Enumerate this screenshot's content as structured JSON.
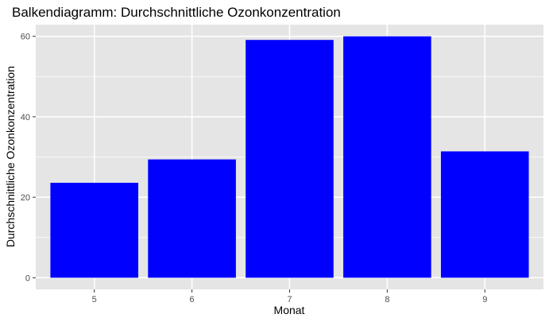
{
  "chart_data": {
    "type": "bar",
    "title": "Balkendiagramm: Durchschnittliche Ozonkonzentration",
    "xlabel": "Monat",
    "ylabel": "Durchschnittliche Ozonkonzentration",
    "categories": [
      "5",
      "6",
      "7",
      "8",
      "9"
    ],
    "values": [
      23.6,
      29.4,
      59.1,
      60.0,
      31.4
    ],
    "yticks": [
      "0",
      "20",
      "40",
      "60"
    ],
    "ylim": [
      -2.9,
      62.9
    ],
    "grid": true,
    "legend": "none",
    "colors": {
      "bar": "#0000ff",
      "panel": "#e5e5e5",
      "grid": "#ffffff"
    }
  }
}
